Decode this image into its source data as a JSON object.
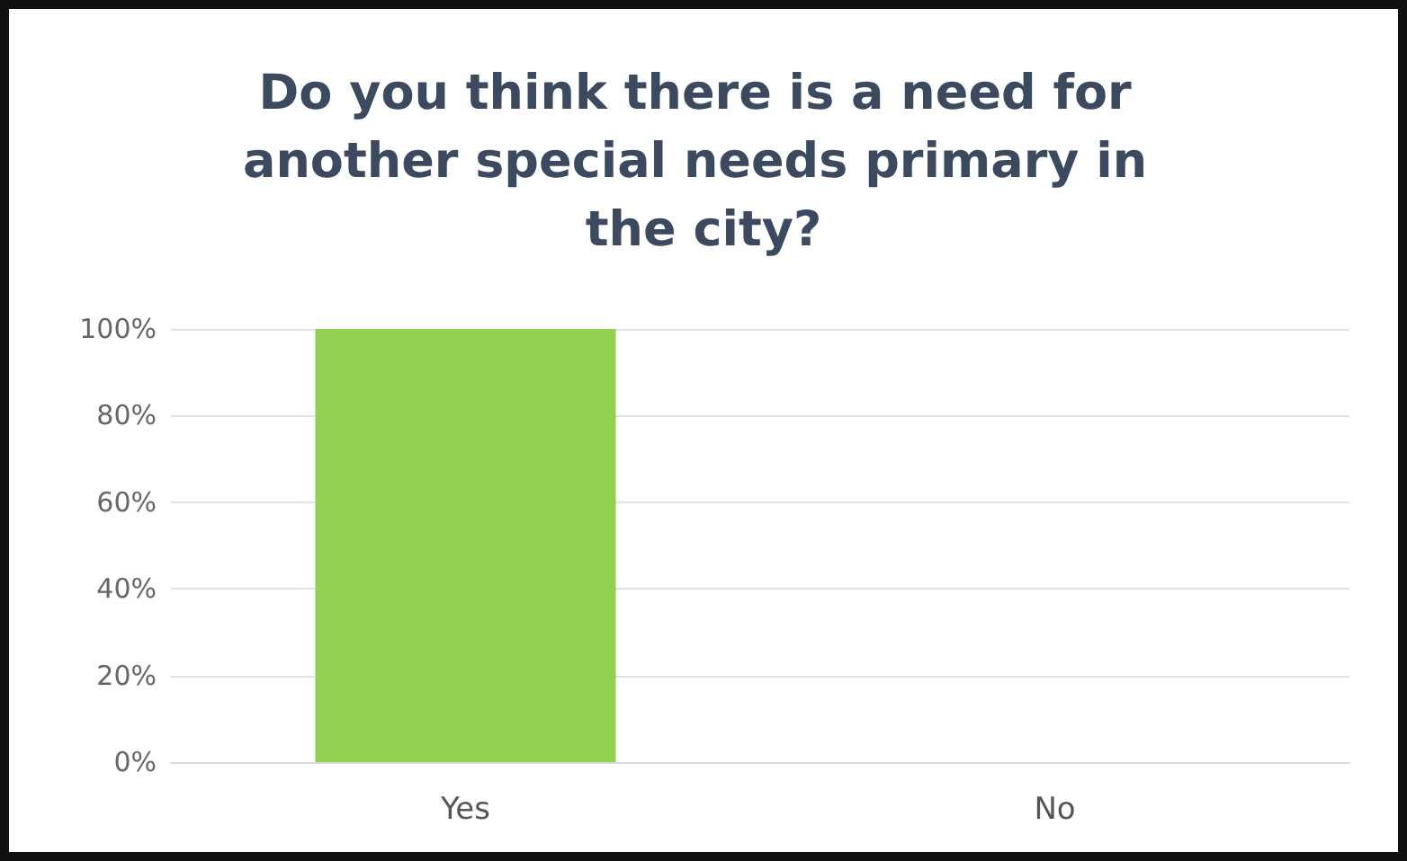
{
  "chart_data": {
    "type": "bar",
    "title": "Do you think there is a need for another special needs primary in the city?",
    "categories": [
      "Yes",
      "No"
    ],
    "values": [
      100,
      0
    ],
    "color": "#92d050",
    "ylim": [
      0,
      100
    ],
    "yticks": [
      {
        "value": 0,
        "label": "0%"
      },
      {
        "value": 20,
        "label": "20%"
      },
      {
        "value": 40,
        "label": "40%"
      },
      {
        "value": 60,
        "label": "60%"
      },
      {
        "value": 80,
        "label": "80%"
      },
      {
        "value": 100,
        "label": "100%"
      }
    ],
    "grid": "y"
  }
}
